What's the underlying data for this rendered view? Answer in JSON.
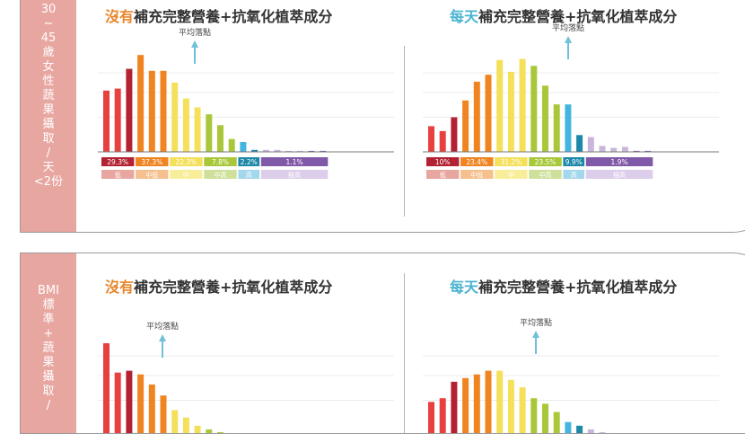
{
  "colors": {
    "red": "#e8403f",
    "darkred": "#b22233",
    "orange": "#ef8421",
    "yellow": "#f4e05a",
    "green": "#a8c83a",
    "cyan": "#43b6e0",
    "blue": "#1e88a8",
    "lavender": "#c8b6dc",
    "purple": "#8059a8"
  },
  "sections": [
    {
      "sidebar": [
        "30",
        "~",
        "45",
        "歲",
        "女",
        "性",
        "蔬",
        "果",
        "攝",
        "取",
        "/",
        "天",
        "<2份"
      ],
      "panels": [
        {
          "title_highlight": "沒有",
          "title_rest": "補充完整營養+抗氧化植萃成分",
          "avg_label": "平均落點",
          "chart_data": {
            "type": "bar",
            "values": [
              62,
              64,
              84,
              98,
              82,
              82,
              70,
              54,
              45,
              38,
              27,
              13,
              10,
              2,
              2,
              2,
              1,
              1,
              1,
              1
            ],
            "groups": [
              {
                "pct": "29.3%",
                "label": "低",
                "count": 3
              },
              {
                "pct": "37.3%",
                "label": "中低",
                "count": 3
              },
              {
                "pct": "22.3%",
                "label": "中",
                "count": 3
              },
              {
                "pct": "7.8%",
                "label": "中高",
                "count": 3
              },
              {
                "pct": "2.2%",
                "label": "高",
                "count": 2
              },
              {
                "pct": "1.1%",
                "label": "極高",
                "count": 6
              }
            ]
          }
        },
        {
          "title_highlight": "每天",
          "title_rest": "補充完整營養+抗氧化植萃成分",
          "avg_label": "平均落點",
          "chart_data": {
            "type": "bar",
            "values": [
              26,
              21,
              35,
              52,
              71,
              78,
              93,
              81,
              94,
              87,
              67,
              48,
              48,
              17,
              15,
              6,
              4,
              5,
              1,
              1
            ],
            "groups": [
              {
                "pct": "10%",
                "label": "低",
                "count": 3
              },
              {
                "pct": "23.4%",
                "label": "中低",
                "count": 3
              },
              {
                "pct": "31.2%",
                "label": "中",
                "count": 3
              },
              {
                "pct": "23.5%",
                "label": "中高",
                "count": 3
              },
              {
                "pct": "9.9%",
                "label": "高",
                "count": 2
              },
              {
                "pct": "1.9%",
                "label": "極高",
                "count": 6
              }
            ]
          }
        }
      ]
    },
    {
      "sidebar": [
        "BMI",
        "標",
        "準",
        "+",
        "蔬",
        "果",
        "攝",
        "取",
        "/"
      ],
      "panels": [
        {
          "title_highlight": "沒有",
          "title_rest": "補充完整營養+抗氧化植萃成分",
          "avg_label": "平均落點",
          "chart_data": {
            "type": "bar",
            "values": [
              100,
              68,
              70,
              66,
              55,
              43,
              27,
              19,
              10,
              6,
              3,
              2,
              1,
              1,
              1,
              1,
              1,
              1,
              1,
              1
            ]
          }
        },
        {
          "title_highlight": "每天",
          "title_rest": "補充完整營養+抗氧化植萃成分",
          "avg_label": "平均落點",
          "chart_data": {
            "type": "bar",
            "values": [
              36,
              40,
              58,
              62,
              66,
              70,
              70,
              60,
              52,
              40,
              34,
              25,
              14,
              10,
              6,
              3,
              2,
              1,
              1,
              1
            ]
          }
        }
      ]
    }
  ]
}
